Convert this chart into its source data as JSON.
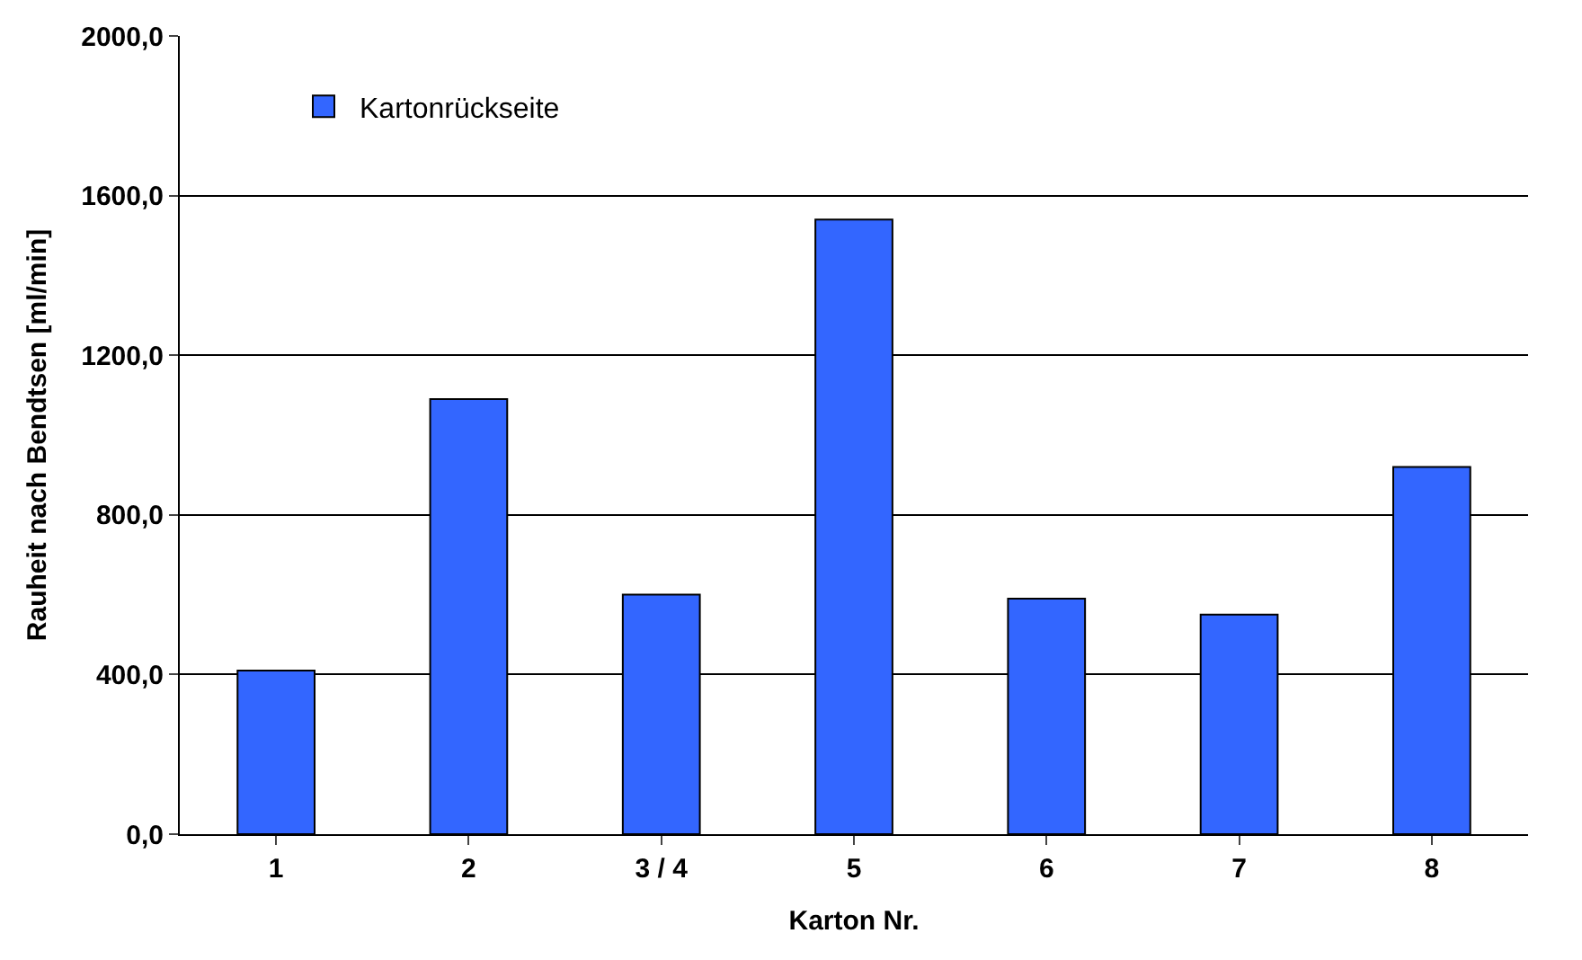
{
  "chart_data": {
    "type": "bar",
    "xlabel": "Karton Nr.",
    "ylabel": "Rauheit nach Bendtsen [ml/min]",
    "categories": [
      "1",
      "2",
      "3 / 4",
      "5",
      "6",
      "7",
      "8"
    ],
    "series": [
      {
        "name": "Kartonrückseite",
        "color": "#3366ff",
        "values": [
          410,
          1090,
          600,
          1540,
          590,
          550,
          920
        ]
      }
    ],
    "ylim": [
      0,
      2000
    ],
    "yticks": [
      {
        "value": 0,
        "label": "0,0"
      },
      {
        "value": 400,
        "label": "400,0"
      },
      {
        "value": 800,
        "label": "800,0"
      },
      {
        "value": 1200,
        "label": "1200,0"
      },
      {
        "value": 1600,
        "label": "1600,0"
      },
      {
        "value": 2000,
        "label": "2000,0"
      }
    ],
    "grid": "y",
    "legend": "top left"
  }
}
